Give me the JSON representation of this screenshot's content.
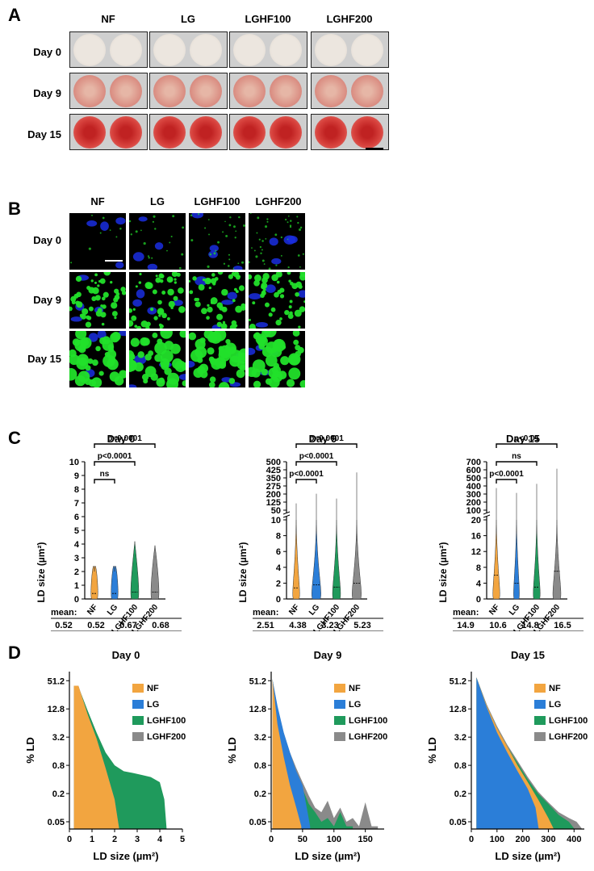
{
  "panels": {
    "a": "A",
    "b": "B",
    "c": "C",
    "d": "D"
  },
  "conditions": [
    "NF",
    "LG",
    "LGHF100",
    "LGHF200"
  ],
  "days": [
    "Day 0",
    "Day 9",
    "Day 15"
  ],
  "colors": {
    "NF": "#f2a540",
    "LG": "#2b7ed8",
    "LGHF100": "#1f9a5c",
    "LGHF200": "#8a8a8a"
  },
  "panel_c": [
    {
      "title": "Day 0",
      "ylabel": "LD size (µm²)",
      "ticks_low": [
        "0",
        "1",
        "2",
        "3",
        "4",
        "5",
        "6",
        "7",
        "8",
        "9",
        "10"
      ],
      "ticks_high": [],
      "brackets": [
        "ns",
        "p<0.0001",
        "p<0.0001"
      ],
      "mean_label": "mean:",
      "means": [
        "0.52",
        "0.52",
        "0.67",
        "0.68"
      ]
    },
    {
      "title": "Day 9",
      "ylabel": "LD size (µm²)",
      "ticks_low": [
        "0",
        "2",
        "4",
        "6",
        "8",
        "10"
      ],
      "ticks_high": [
        "50",
        "125",
        "200",
        "275",
        "350",
        "425",
        "500"
      ],
      "brackets": [
        "p<0.0001",
        "p<0.0001",
        "p<0.0001"
      ],
      "mean_label": "mean:",
      "means": [
        "2.51",
        "4.38",
        "3.23",
        "5.23"
      ]
    },
    {
      "title": "Day 15",
      "ylabel": "LD size (µm²)",
      "ticks_low": [
        "0",
        "4",
        "8",
        "12",
        "16",
        "20"
      ],
      "ticks_high": [
        "100",
        "200",
        "300",
        "400",
        "500",
        "600",
        "700"
      ],
      "brackets": [
        "p<0.0001",
        "ns",
        "p<0.01"
      ],
      "mean_label": "mean:",
      "means": [
        "14.9",
        "10.6",
        "14.8",
        "16.5"
      ]
    }
  ],
  "chart_data": [
    {
      "type": "area",
      "title": "Day 0",
      "xlabel": "LD size (µm²)",
      "ylabel": "% LD",
      "yscale": "log",
      "yticks": [
        "51.2",
        "12.8",
        "3.2",
        "0.8",
        "0.2",
        "0.05"
      ],
      "xticks": [
        "0",
        "1",
        "2",
        "3",
        "4",
        "5"
      ],
      "xlim": [
        0,
        5
      ],
      "series": [
        {
          "name": "NF",
          "x": [
            0.2,
            0.4,
            0.8,
            1.2,
            1.6,
            2.0,
            2.2
          ],
          "y": [
            40,
            40,
            10,
            3,
            0.7,
            0.15,
            0.02
          ]
        },
        {
          "name": "LG",
          "x": [
            0.2,
            0.4,
            0.8,
            1.2,
            1.6,
            2.0,
            2.2
          ],
          "y": [
            40,
            40,
            10,
            3,
            0.7,
            0.15,
            0.02
          ]
        },
        {
          "name": "LGHF100",
          "x": [
            0.2,
            0.4,
            0.8,
            1.2,
            1.6,
            2.0,
            2.4,
            2.8,
            3.2,
            3.6,
            4.0,
            4.2,
            4.3
          ],
          "y": [
            40,
            38,
            12,
            4,
            1.5,
            0.8,
            0.6,
            0.55,
            0.5,
            0.45,
            0.35,
            0.15,
            0.02
          ]
        },
        {
          "name": "LGHF200",
          "x": [
            0.2,
            0.4,
            0.8,
            1.2,
            1.6,
            2.0,
            2.4,
            2.8,
            3.2,
            3.6,
            3.8
          ],
          "y": [
            40,
            38,
            12,
            4,
            1.5,
            0.8,
            0.6,
            0.5,
            0.45,
            0.35,
            0.02
          ]
        }
      ]
    },
    {
      "type": "area",
      "title": "Day 9",
      "xlabel": "LD size (µm²)",
      "ylabel": "% LD",
      "yscale": "log",
      "yticks": [
        "51.2",
        "12.8",
        "3.2",
        "0.8",
        "0.2",
        "0.05"
      ],
      "xticks": [
        "0",
        "50",
        "100",
        "150"
      ],
      "xlim": [
        0,
        180
      ],
      "series": [
        {
          "name": "NF",
          "x": [
            2,
            10,
            20,
            30,
            40,
            48
          ],
          "y": [
            55,
            6,
            1.2,
            0.3,
            0.1,
            0.04
          ]
        },
        {
          "name": "LG",
          "x": [
            2,
            10,
            20,
            30,
            40,
            50,
            58,
            62
          ],
          "y": [
            55,
            15,
            4,
            1.5,
            0.6,
            0.3,
            0.08,
            0.04
          ]
        },
        {
          "name": "LGHF100",
          "x": [
            2,
            10,
            20,
            30,
            40,
            50,
            60,
            70,
            80,
            90,
            100,
            110,
            120,
            130
          ],
          "y": [
            55,
            12,
            3,
            1.1,
            0.5,
            0.25,
            0.12,
            0.08,
            0.05,
            0.06,
            0.04,
            0.08,
            0.04,
            0.04
          ]
        },
        {
          "name": "LGHF200",
          "x": [
            2,
            10,
            20,
            30,
            40,
            50,
            60,
            70,
            80,
            90,
            100,
            110,
            120,
            130,
            140,
            150,
            160,
            170
          ],
          "y": [
            55,
            14,
            4,
            1.5,
            0.7,
            0.35,
            0.18,
            0.1,
            0.08,
            0.14,
            0.06,
            0.1,
            0.05,
            0.06,
            0.04,
            0.13,
            0.04,
            0.04
          ]
        }
      ]
    },
    {
      "type": "area",
      "title": "Day 15",
      "xlabel": "LD size (µm²)",
      "ylabel": "% LD",
      "yscale": "log",
      "yticks": [
        "51.2",
        "12.8",
        "3.2",
        "0.8",
        "0.2",
        "0.05"
      ],
      "xticks": [
        "0",
        "100",
        "200",
        "300",
        "400"
      ],
      "xlim": [
        0,
        440
      ],
      "series": [
        {
          "name": "NF",
          "x": [
            20,
            60,
            100,
            140,
            180,
            220,
            260,
            300,
            320
          ],
          "y": [
            60,
            15,
            5,
            2,
            0.8,
            0.35,
            0.15,
            0.06,
            0.03
          ]
        },
        {
          "name": "LG",
          "x": [
            20,
            60,
            100,
            140,
            180,
            220,
            250,
            262
          ],
          "y": [
            60,
            14,
            4,
            1.5,
            0.6,
            0.25,
            0.1,
            0.03
          ]
        },
        {
          "name": "LGHF100",
          "x": [
            20,
            60,
            100,
            140,
            180,
            220,
            260,
            300,
            340,
            380,
            400
          ],
          "y": [
            60,
            15,
            5,
            2,
            0.9,
            0.4,
            0.2,
            0.12,
            0.07,
            0.05,
            0.03
          ]
        },
        {
          "name": "LGHF200",
          "x": [
            20,
            60,
            100,
            140,
            180,
            220,
            260,
            300,
            340,
            380,
            410,
            430
          ],
          "y": [
            60,
            16,
            5.5,
            2.2,
            1,
            0.45,
            0.22,
            0.13,
            0.08,
            0.06,
            0.05,
            0.03
          ]
        }
      ]
    }
  ]
}
